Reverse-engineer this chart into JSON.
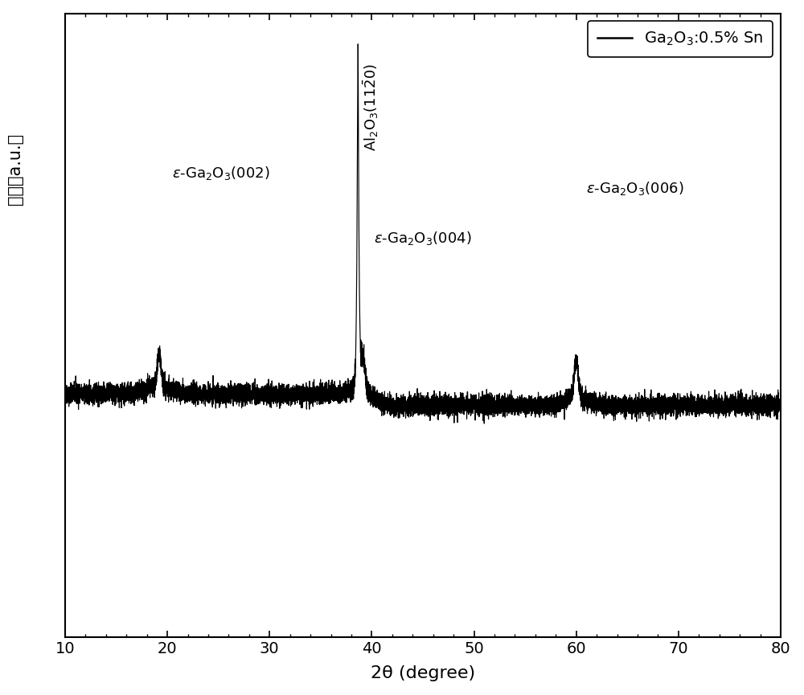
{
  "xlim": [
    10,
    80
  ],
  "xlabel": "2θ (degree)",
  "ylabel": "强度（a.u.）",
  "line_color": "#000000",
  "noise_seed": 42,
  "noise_amplitude": 0.055,
  "figsize": [
    10.0,
    8.65
  ],
  "dpi": 100
}
